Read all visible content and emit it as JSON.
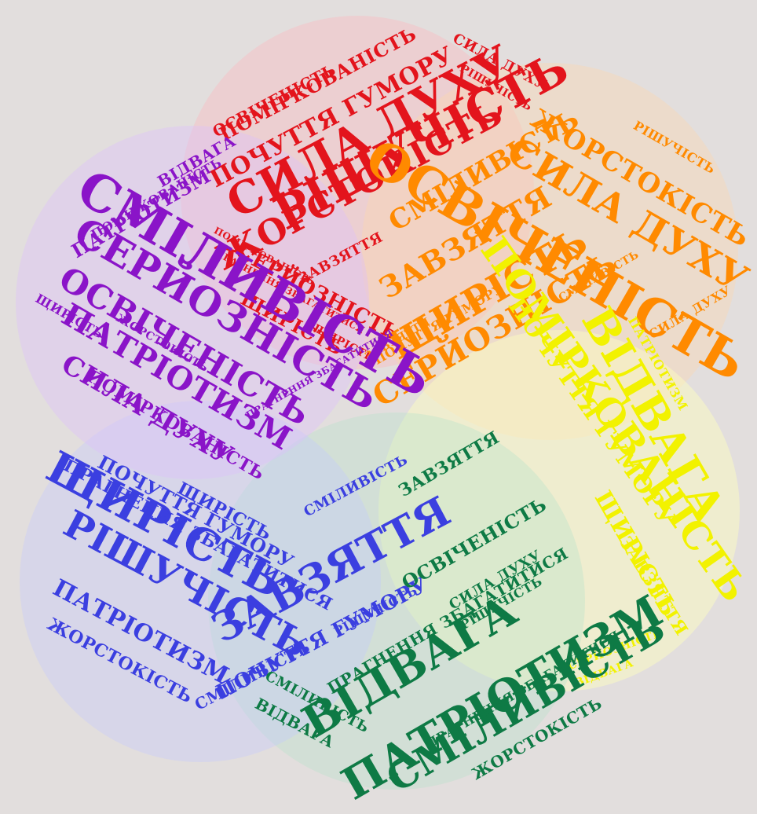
{
  "colors": {
    "background": "#e2dedd",
    "red": "#e3141c",
    "orange": "#ff8a00",
    "yellow": "#f2f200",
    "green": "#0e7a45",
    "blue": "#3b3fe0",
    "purple": "#8a14c8"
  },
  "clusters": {
    "red": {
      "words": [
        {
          "text": "РІШУЧІСТЬ"
        },
        {
          "text": "СИЛА ДУХУ"
        },
        {
          "text": "ЖОРСТОКІСТЬ"
        },
        {
          "text": "ПОЧУТТЯ ГУМОРУ"
        },
        {
          "text": "ПОМІРКОВАНІСТЬ"
        },
        {
          "text": "ОСВІЧЕНІСТЬ"
        },
        {
          "text": "СЕРЙОЗНІСТЬ"
        },
        {
          "text": "ЩИРІСТЬ"
        },
        {
          "text": "ЗАВЗЯТТЯ"
        },
        {
          "text": "ПРАГНЕННЯ ЗБАГАТИТИСЯ"
        },
        {
          "text": "СИЛА ДУХУ"
        },
        {
          "text": "РІШУЧІСТЬ"
        },
        {
          "text": "ПОМІРКОВАНІСТЬ"
        },
        {
          "text": "ЩИРІСТЬ"
        }
      ]
    },
    "orange": {
      "words": [
        {
          "text": "ОСВІЧЕНІСТЬ"
        },
        {
          "text": "СИЛА ДУХУ"
        },
        {
          "text": "ЖОРСТОКІСТЬ"
        },
        {
          "text": "ЗАВЗЯТТЯ"
        },
        {
          "text": "ЩИРІСТЬ"
        },
        {
          "text": "СЕРЙОЗНІСТЬ"
        },
        {
          "text": "СМІЛИВІСТЬ"
        },
        {
          "text": "ПОЧУТТЯ ГУМОРУ"
        },
        {
          "text": "РІШУЧІСТЬ"
        },
        {
          "text": "СИЛА ДУХУ"
        },
        {
          "text": "ЗАВЗЯТТЯ"
        },
        {
          "text": "СМІЛИВІСТЬ"
        }
      ]
    },
    "yellow": {
      "words": [
        {
          "text": "ВІДВАГА"
        },
        {
          "text": "ПОМІРКОВАНІСТЬ"
        },
        {
          "text": "ПОЧУТТЯ ГУМОРУ"
        },
        {
          "text": "ЩИРІСТЬ"
        },
        {
          "text": "ЗАВЗЯТТЯ"
        },
        {
          "text": "СЕРЙОЗНІСТЬ"
        },
        {
          "text": "ВІДВАГА"
        },
        {
          "text": "ПАТРІОТИЗМ"
        }
      ]
    },
    "green": {
      "words": [
        {
          "text": "ВІДВАГА"
        },
        {
          "text": "ПАТРІОТИЗМ"
        },
        {
          "text": "СМІЛИВІСТЬ"
        },
        {
          "text": "ОСВІЧЕНІСТЬ"
        },
        {
          "text": "ПРАГНЕННЯ ЗБАГАТИТИСЯ"
        },
        {
          "text": "ЖОРСТОКІСТЬ"
        },
        {
          "text": "ЗАВЗЯТТЯ"
        },
        {
          "text": "СИЛА ДУХУ"
        },
        {
          "text": "РІШУЧІСТЬ"
        },
        {
          "text": "ВІДВАГА"
        },
        {
          "text": "СМІЛИВІСТЬ"
        },
        {
          "text": "ПРАГНЕННЯ ЗБАГАТИТИСЯ"
        }
      ]
    },
    "blue": {
      "words": [
        {
          "text": "ЩИРІСТЬ"
        },
        {
          "text": "ЗАВЗЯТТЯ"
        },
        {
          "text": "РІШУЧІСТЬ"
        },
        {
          "text": "ПАТРІОТИЗМ"
        },
        {
          "text": "ПОЧУТТЯ ГУМОРУ"
        },
        {
          "text": "ПРАГНЕННЯ ЗБАГАТИТИСЯ"
        },
        {
          "text": "ЖОРСТОКІСТЬ"
        },
        {
          "text": "СМІЛИВІСТЬ"
        },
        {
          "text": "ЩИРІСТЬ"
        },
        {
          "text": "ПОЧУТТЯ ГУМОРУ"
        },
        {
          "text": "РІШУЧІСТЬ"
        },
        {
          "text": "СМІЛИВІСТЬ"
        }
      ]
    },
    "purple": {
      "words": [
        {
          "text": "СМІЛИВІСТЬ"
        },
        {
          "text": "СЕРЙОЗНІСТЬ"
        },
        {
          "text": "ОСВІЧЕНІСТЬ"
        },
        {
          "text": "ПАТРІОТИЗМ"
        },
        {
          "text": "СИЛА ДУХУ"
        },
        {
          "text": "ПОМІРКОВАНІСТЬ"
        },
        {
          "text": "ПАТРІОТИЗМ"
        },
        {
          "text": "ВІДВАГА"
        },
        {
          "text": "ЖОРСТОКІСТЬ"
        },
        {
          "text": "ЩИРІСТЬ"
        },
        {
          "text": "ПОМІРКОВАНІСТЬ"
        },
        {
          "text": "ПРАГНЕННЯ ЗБАГАТИТИСЯ"
        }
      ]
    }
  }
}
